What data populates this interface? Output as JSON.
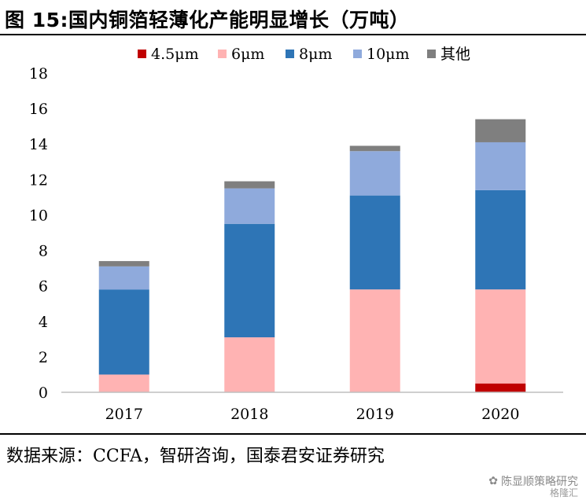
{
  "title": "图 15:国内铜箔轻薄化产能明显增长（万吨）",
  "source": "数据来源：CCFA，智研咨询，国泰君安证券研究",
  "watermark": {
    "text": "陈显顺策略研究",
    "sub": "格隆汇"
  },
  "chart_data": {
    "type": "bar",
    "stacked": true,
    "categories": [
      "2017",
      "2018",
      "2019",
      "2020"
    ],
    "series": [
      {
        "name": "4.5μm",
        "color": "#c00000",
        "values": [
          0,
          0,
          0,
          0.5
        ]
      },
      {
        "name": "6μm",
        "color": "#ffb3b3",
        "values": [
          1.0,
          3.1,
          5.8,
          5.3
        ]
      },
      {
        "name": "8μm",
        "color": "#2e75b6",
        "values": [
          4.8,
          6.4,
          5.3,
          5.6
        ]
      },
      {
        "name": "10μm",
        "color": "#8faadc",
        "values": [
          1.3,
          2.0,
          2.5,
          2.7
        ]
      },
      {
        "name": "其他",
        "color": "#7f7f7f",
        "values": [
          0.3,
          0.4,
          0.3,
          1.3
        ]
      }
    ],
    "ylim": [
      0,
      18
    ],
    "yticks": [
      0,
      2,
      4,
      6,
      8,
      10,
      12,
      14,
      16,
      18
    ],
    "legend_position": "top",
    "grid": false
  }
}
